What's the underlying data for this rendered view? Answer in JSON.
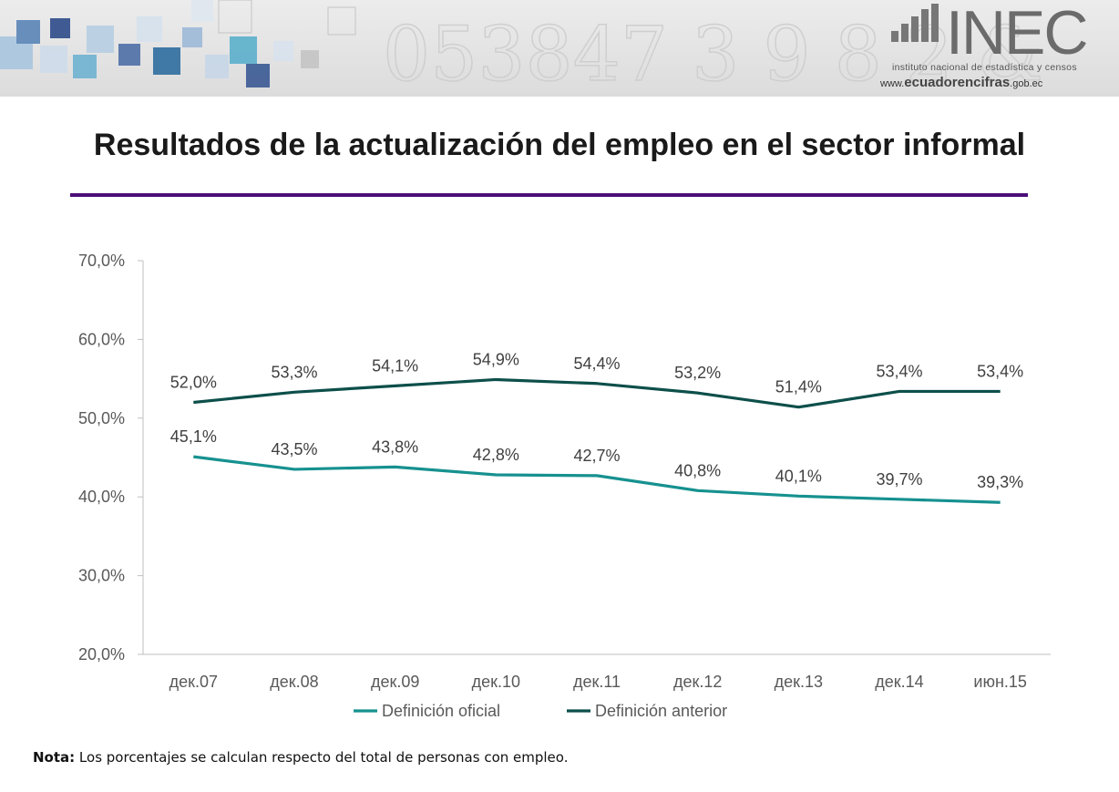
{
  "header": {
    "logo_text": "INEC",
    "logo_subtitle": "instituto nacional de estadística y censos",
    "logo_url_prefix": "www.",
    "logo_url_bold": "ecuadorencifras",
    "logo_url_suffix": ".gob.ec",
    "decor_text": "053847 3 9 8 2 &"
  },
  "page": {
    "title": "Resultados de la actualización del empleo en el sector informal",
    "note_label": "Nota:",
    "note_text": " Los porcentajes se calculan respecto del total de personas con empleo."
  },
  "colors": {
    "accent_rule": "#4b0f78",
    "oficial": "#16918f",
    "anterior": "#0d4f4a"
  },
  "chart_data": {
    "type": "line",
    "title": "",
    "xlabel": "",
    "ylabel": "",
    "categories": [
      "дек.07",
      "дек.08",
      "дек.09",
      "дек.10",
      "дек.11",
      "дек.12",
      "дек.13",
      "дек.14",
      "июн.15"
    ],
    "ylim": [
      20,
      70
    ],
    "yticks": [
      20,
      30,
      40,
      50,
      60,
      70
    ],
    "ytick_labels": [
      "20,0%",
      "30,0%",
      "40,0%",
      "50,0%",
      "60,0%",
      "70,0%"
    ],
    "grid": false,
    "legend_position": "bottom",
    "series": [
      {
        "name": "Definición oficial",
        "color": "#16918f",
        "values": [
          45.1,
          43.5,
          43.8,
          42.8,
          42.7,
          40.8,
          40.1,
          39.7,
          39.3
        ],
        "labels": [
          "45,1%",
          "43,5%",
          "43,8%",
          "42,8%",
          "42,7%",
          "40,8%",
          "40,1%",
          "39,7%",
          "39,3%"
        ]
      },
      {
        "name": "Definición anterior",
        "color": "#0d4f4a",
        "values": [
          52.0,
          53.3,
          54.1,
          54.9,
          54.4,
          53.2,
          51.4,
          53.4,
          53.4
        ],
        "labels": [
          "52,0%",
          "53,3%",
          "54,1%",
          "54,9%",
          "54,4%",
          "53,2%",
          "51,4%",
          "53,4%",
          "53,4%"
        ]
      }
    ]
  }
}
